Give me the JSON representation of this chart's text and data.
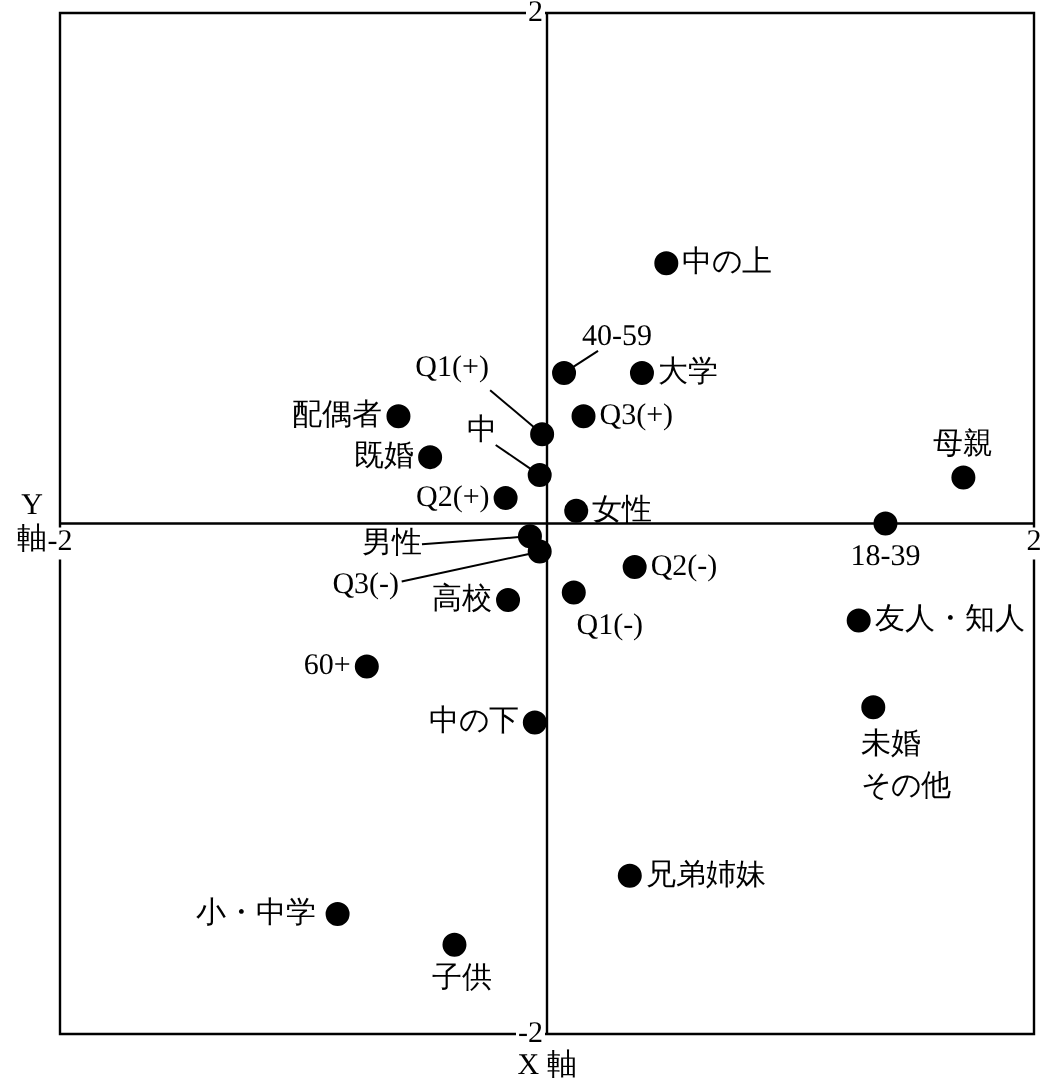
{
  "chart_data": {
    "type": "scatter",
    "xlabel": "X 軸",
    "ylabel": "Y\n軸",
    "xlim": [
      -2,
      2
    ],
    "ylim": [
      -2,
      2
    ],
    "xticks": [
      -2,
      2
    ],
    "yticks": [
      -2,
      2
    ],
    "legend": false,
    "marker": "circle",
    "series": [
      {
        "color": "#000000",
        "x": [
          0.49,
          0.07,
          0.39,
          -0.02,
          0.15,
          -0.61,
          -0.03,
          -0.48,
          -0.17,
          0.12,
          -0.07,
          -0.03,
          0.36,
          -0.16,
          0.11,
          -0.74,
          -0.05,
          0.34,
          -0.86,
          -0.38,
          1.71,
          1.39,
          1.28,
          1.34
        ],
        "values": [
          1.02,
          0.59,
          0.59,
          0.35,
          0.42,
          0.42,
          0.19,
          0.26,
          0.1,
          0.05,
          -0.05,
          -0.11,
          -0.17,
          -0.3,
          -0.27,
          -0.56,
          -0.78,
          -1.38,
          -1.53,
          -1.65,
          0.18,
          0.0,
          -0.38,
          -0.72
        ]
      }
    ],
    "annotations": [
      {
        "text": "中の上",
        "x": 0.49,
        "y": 1.02
      },
      {
        "text": "40-59",
        "x": 0.07,
        "y": 0.59
      },
      {
        "text": "大学",
        "x": 0.39,
        "y": 0.59
      },
      {
        "text": "Q1(+)",
        "x": -0.02,
        "y": 0.35
      },
      {
        "text": "Q3(+)",
        "x": 0.15,
        "y": 0.42
      },
      {
        "text": "配偶者",
        "x": -0.61,
        "y": 0.42
      },
      {
        "text": "中",
        "x": -0.03,
        "y": 0.19
      },
      {
        "text": "既婚",
        "x": -0.48,
        "y": 0.26
      },
      {
        "text": "Q2(+)",
        "x": -0.17,
        "y": 0.1
      },
      {
        "text": "女性",
        "x": 0.12,
        "y": 0.05
      },
      {
        "text": "男性",
        "x": -0.07,
        "y": -0.05
      },
      {
        "text": "Q3(-)",
        "x": -0.03,
        "y": -0.11
      },
      {
        "text": "Q2(-)",
        "x": 0.36,
        "y": -0.17
      },
      {
        "text": "高校",
        "x": -0.16,
        "y": -0.3
      },
      {
        "text": "Q1(-)",
        "x": 0.11,
        "y": -0.27
      },
      {
        "text": "60+",
        "x": -0.74,
        "y": -0.56
      },
      {
        "text": "中の下",
        "x": -0.05,
        "y": -0.78
      },
      {
        "text": "兄弟姉妹",
        "x": 0.34,
        "y": -1.38
      },
      {
        "text": "小・中学",
        "x": -0.86,
        "y": -1.53
      },
      {
        "text": "子供",
        "x": -0.38,
        "y": -1.65
      },
      {
        "text": "母親",
        "x": 1.71,
        "y": 0.18
      },
      {
        "text": "18-39",
        "x": 1.39,
        "y": 0.0
      },
      {
        "text": "友人・知人",
        "x": 1.28,
        "y": -0.38
      },
      {
        "text": "未婚その他",
        "x": 1.34,
        "y": -0.72
      }
    ]
  }
}
